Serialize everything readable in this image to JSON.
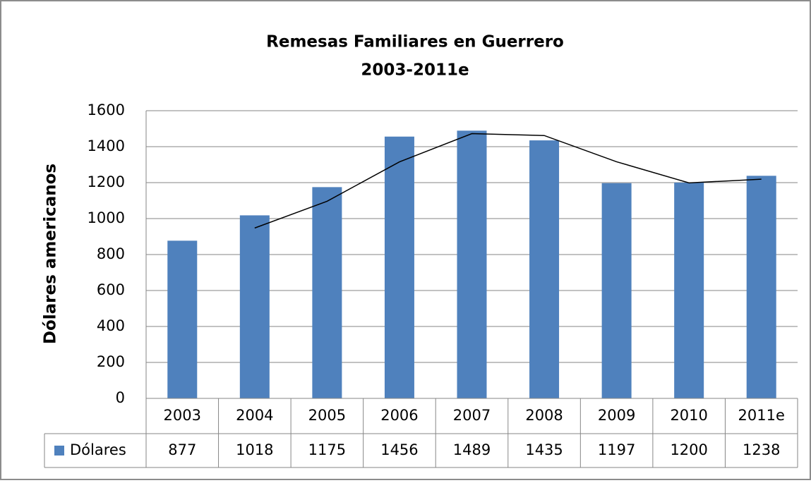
{
  "chart_data": {
    "type": "bar",
    "title": "Remesas Familiares en Guerrero",
    "subtitle": "2003-2011e",
    "y_label": "Dólares americanos",
    "categories": [
      "2003",
      "2004",
      "2005",
      "2006",
      "2007",
      "2008",
      "2009",
      "2010",
      "2011e"
    ],
    "series": [
      {
        "name": "Dólares",
        "color": "#4f81bd",
        "values": [
          877,
          1018,
          1175,
          1456,
          1489,
          1435,
          1197,
          1200,
          1238
        ]
      },
      {
        "type": "line",
        "color": "#000000",
        "values": [
          null,
          947.5,
          1096.5,
          1315.5,
          1472.5,
          1462,
          1316,
          1198.5,
          1219
        ]
      }
    ],
    "ylim": [
      0,
      1600
    ],
    "yticks": [
      0,
      200,
      400,
      600,
      800,
      1000,
      1200,
      1400,
      1600
    ],
    "grid": true,
    "data_table": true
  }
}
